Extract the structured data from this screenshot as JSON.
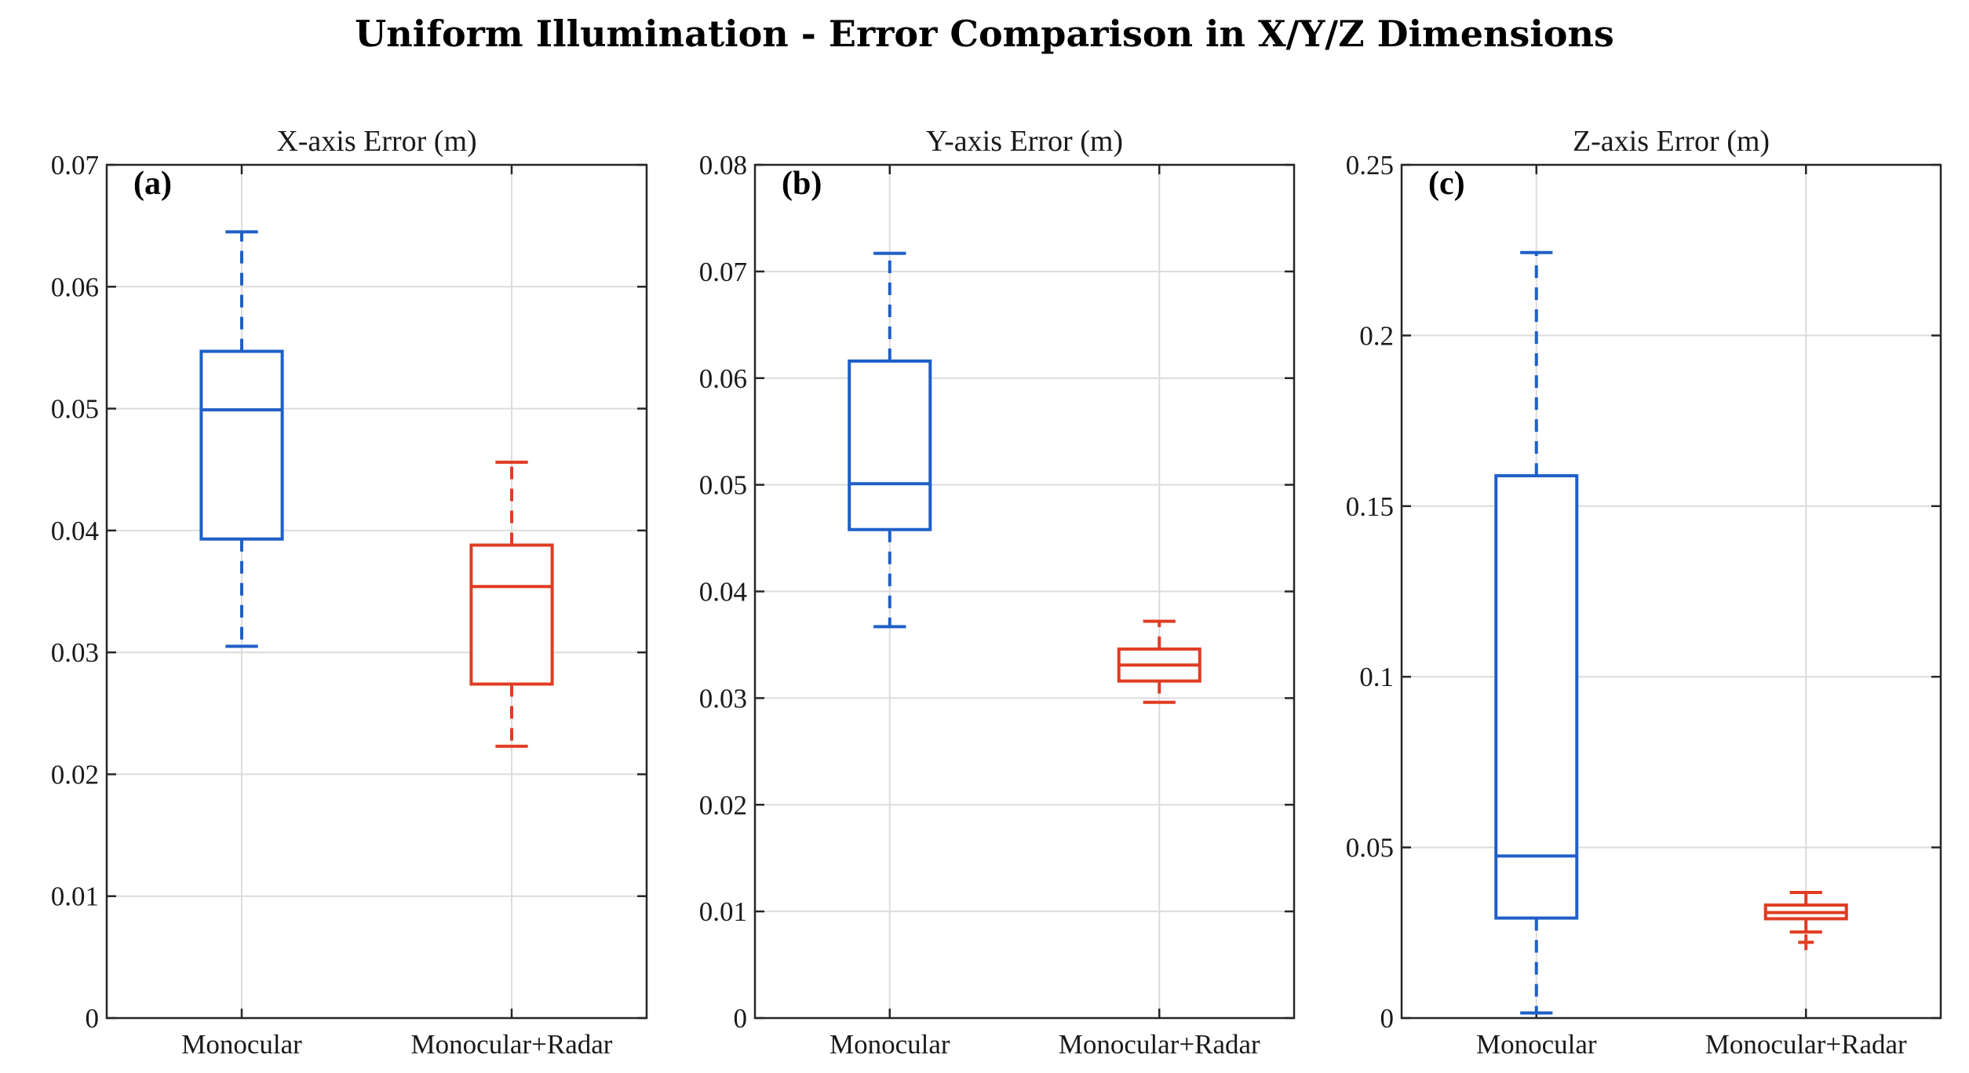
{
  "title": "Uniform Illumination - Error Comparison in X/Y/Z Dimensions",
  "colors": {
    "monocular": "#1f5fc8",
    "radar": "#e03c22",
    "grid": "#dcdcdc",
    "axis": "#262626"
  },
  "chart_data": [
    {
      "type": "box",
      "panel_label": "(a)",
      "title": "X-axis Error (m)",
      "categories": [
        "Monocular",
        "Monocular+Radar"
      ],
      "ylim": [
        0,
        0.07
      ],
      "yticks": [
        0,
        0.01,
        0.02,
        0.03,
        0.04,
        0.05,
        0.06,
        0.07
      ],
      "ytick_labels": [
        "0",
        "0.01",
        "0.02",
        "0.03",
        "0.04",
        "0.05",
        "0.06",
        "0.07"
      ],
      "grid": true,
      "series": [
        {
          "category": "Monocular",
          "whisker_low": 0.0305,
          "q1": 0.0393,
          "median": 0.0499,
          "q3": 0.0547,
          "whisker_high": 0.0645,
          "outliers": []
        },
        {
          "category": "Monocular+Radar",
          "whisker_low": 0.0223,
          "q1": 0.0274,
          "median": 0.0354,
          "q3": 0.0388,
          "whisker_high": 0.0456,
          "outliers": []
        }
      ]
    },
    {
      "type": "box",
      "panel_label": "(b)",
      "title": "Y-axis Error (m)",
      "categories": [
        "Monocular",
        "Monocular+Radar"
      ],
      "ylim": [
        0,
        0.08
      ],
      "yticks": [
        0,
        0.01,
        0.02,
        0.03,
        0.04,
        0.05,
        0.06,
        0.07,
        0.08
      ],
      "ytick_labels": [
        "0",
        "0.01",
        "0.02",
        "0.03",
        "0.04",
        "0.05",
        "0.06",
        "0.07",
        "0.08"
      ],
      "grid": true,
      "series": [
        {
          "category": "Monocular",
          "whisker_low": 0.0367,
          "q1": 0.0458,
          "median": 0.0501,
          "q3": 0.0616,
          "whisker_high": 0.0717,
          "outliers": []
        },
        {
          "category": "Monocular+Radar",
          "whisker_low": 0.0296,
          "q1": 0.0316,
          "median": 0.0331,
          "q3": 0.0346,
          "whisker_high": 0.0372,
          "outliers": []
        }
      ]
    },
    {
      "type": "box",
      "panel_label": "(c)",
      "title": "Z-axis Error (m)",
      "categories": [
        "Monocular",
        "Monocular+Radar"
      ],
      "ylim": [
        0,
        0.25
      ],
      "yticks": [
        0,
        0.05,
        0.1,
        0.15,
        0.2,
        0.25
      ],
      "ytick_labels": [
        "0",
        "0.05",
        "0.1",
        "0.15",
        "0.2",
        "0.25"
      ],
      "grid": true,
      "series": [
        {
          "category": "Monocular",
          "whisker_low": 0.0015,
          "q1": 0.0293,
          "median": 0.0475,
          "q3": 0.1589,
          "whisker_high": 0.2243,
          "outliers": []
        },
        {
          "category": "Monocular+Radar",
          "whisker_low": 0.0252,
          "q1": 0.0291,
          "median": 0.0309,
          "q3": 0.0331,
          "whisker_high": 0.0368,
          "outliers": [
            0.0222
          ]
        }
      ]
    }
  ]
}
